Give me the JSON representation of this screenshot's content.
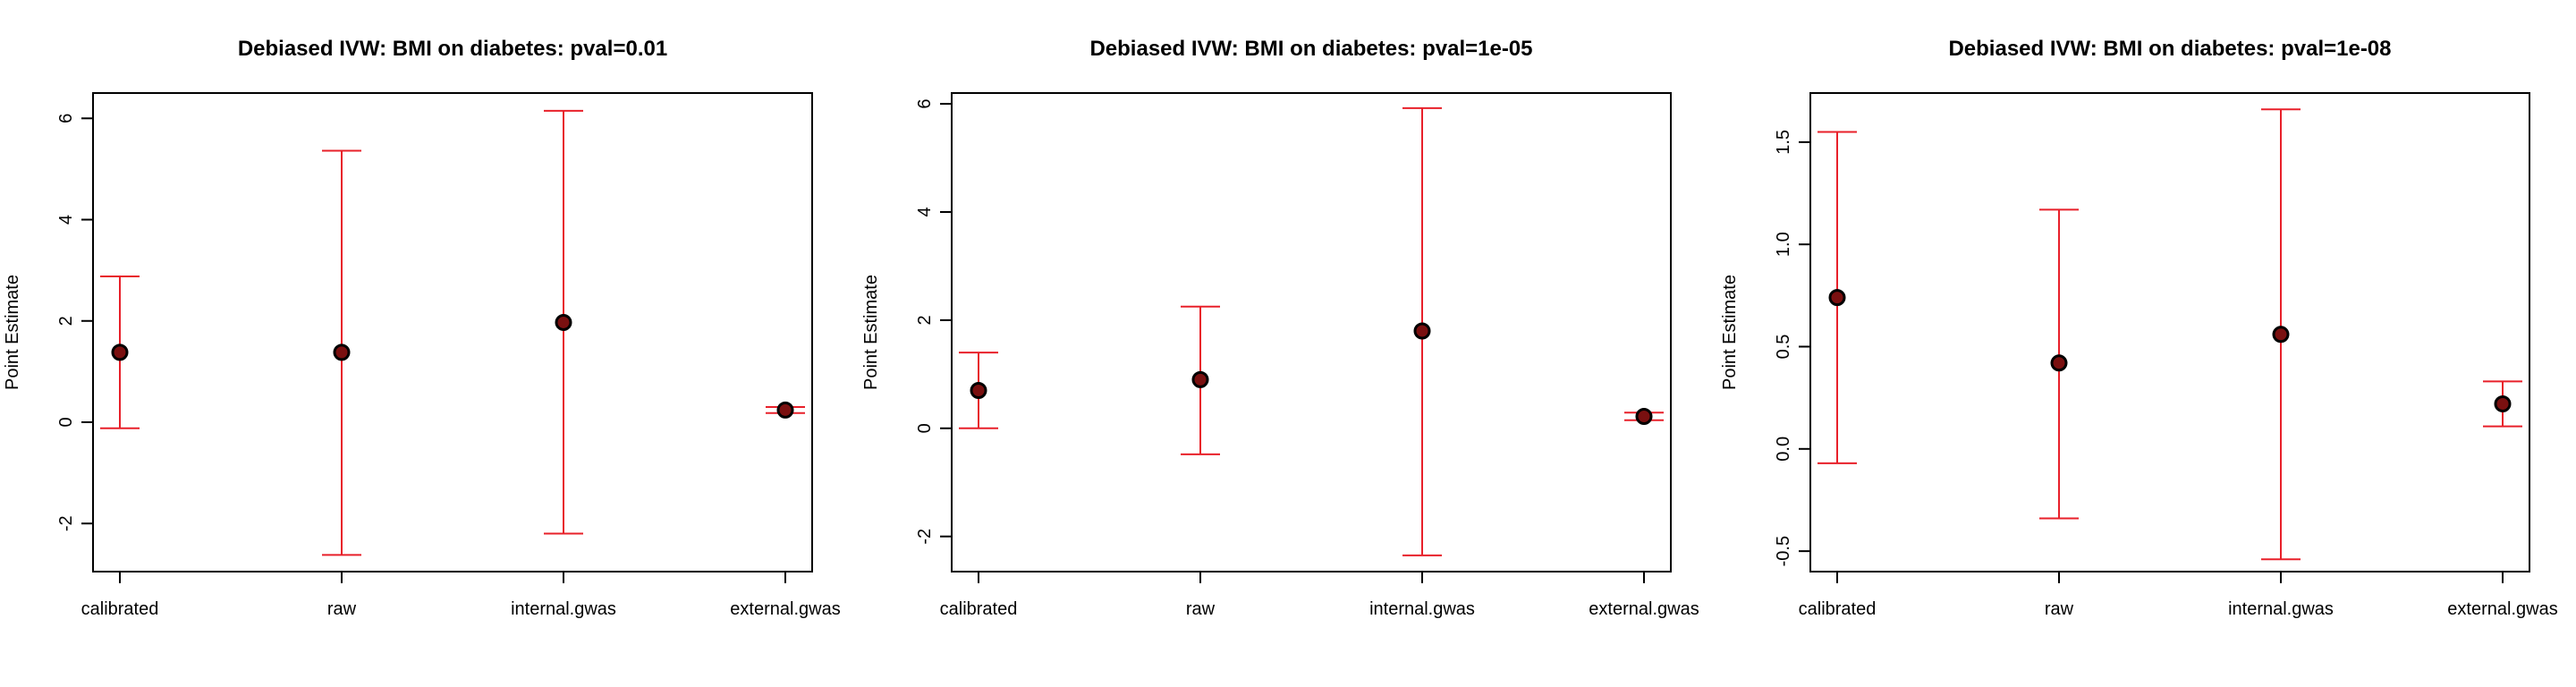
{
  "colors": {
    "error_bar": "#e8202a",
    "point": "#000000",
    "point_fill": "#7a1010"
  },
  "chart_data": [
    {
      "type": "scatter",
      "title": "Debiased IVW: BMI on diabetes: pval=0.01",
      "xlabel": "",
      "ylabel": "Point Estimate",
      "categories": [
        "calibrated",
        "raw",
        "internal.gwas",
        "external.gwas"
      ],
      "values": [
        1.38,
        1.38,
        1.97,
        0.24
      ],
      "lower": [
        -0.12,
        -2.62,
        -2.2,
        0.18
      ],
      "upper": [
        2.88,
        5.36,
        6.15,
        0.3
      ],
      "ylim": [
        -2.95,
        6.5
      ],
      "yticks": [
        -2,
        0,
        2,
        4,
        6
      ],
      "ytick_labels": [
        "-2",
        "0",
        "2",
        "4",
        "6"
      ],
      "grid": false,
      "legend": "none"
    },
    {
      "type": "scatter",
      "title": "Debiased IVW: BMI on diabetes: pval=1e-05",
      "xlabel": "",
      "ylabel": "Point Estimate",
      "categories": [
        "calibrated",
        "raw",
        "internal.gwas",
        "external.gwas"
      ],
      "values": [
        0.7,
        0.9,
        1.8,
        0.22
      ],
      "lower": [
        0.0,
        -0.48,
        -2.35,
        0.15
      ],
      "upper": [
        1.4,
        2.25,
        5.92,
        0.29
      ],
      "ylim": [
        -2.65,
        6.2
      ],
      "yticks": [
        -2,
        0,
        2,
        4,
        6
      ],
      "ytick_labels": [
        "-2",
        "0",
        "2",
        "4",
        "6"
      ],
      "grid": false,
      "legend": "none"
    },
    {
      "type": "scatter",
      "title": "Debiased IVW: BMI on diabetes: pval=1e-08",
      "xlabel": "",
      "ylabel": "Point Estimate",
      "categories": [
        "calibrated",
        "raw",
        "internal.gwas",
        "external.gwas"
      ],
      "values": [
        0.74,
        0.42,
        0.56,
        0.22
      ],
      "lower": [
        -0.07,
        -0.34,
        -0.54,
        0.11
      ],
      "upper": [
        1.55,
        1.17,
        1.66,
        0.33
      ],
      "ylim": [
        -0.6,
        1.74
      ],
      "yticks": [
        -0.5,
        0.0,
        0.5,
        1.0,
        1.5
      ],
      "ytick_labels": [
        "-0.5",
        "0.0",
        "0.5",
        "1.0",
        "1.5"
      ],
      "grid": false,
      "legend": "none"
    }
  ]
}
